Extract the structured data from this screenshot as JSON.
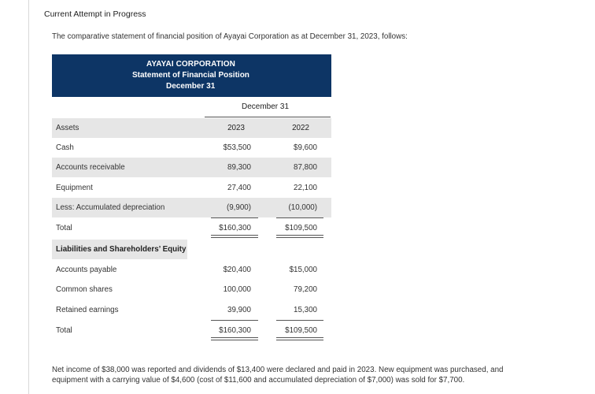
{
  "attempt_label": "Current Attempt in Progress",
  "intro": "The comparative statement of financial position of Ayayai Corporation as at December 31, 2023, follows:",
  "statement": {
    "company": "AYAYAI CORPORATION",
    "name": "Statement of Financial Position",
    "date": "December 31"
  },
  "table": {
    "group_header": "December 31",
    "assets_label": "Assets",
    "col_2023": "2023",
    "col_2022": "2022",
    "asset_rows": [
      {
        "label": "Cash",
        "y2023": "$53,500",
        "y2022": "$9,600"
      },
      {
        "label": "Accounts receivable",
        "y2023": "89,300",
        "y2022": "87,800"
      },
      {
        "label": "Equipment",
        "y2023": "27,400",
        "y2022": "22,100"
      },
      {
        "label": "Less: Accumulated depreciation",
        "y2023": "(9,900)",
        "y2022": "(10,000)"
      }
    ],
    "assets_total": {
      "label": "Total",
      "y2023": "$160,300",
      "y2022": "$109,500"
    },
    "liab_label": "Liabilities and Shareholders’ Equity",
    "liab_rows": [
      {
        "label": "Accounts payable",
        "y2023": "$20,400",
        "y2022": "$15,000"
      },
      {
        "label": "Common shares",
        "y2023": "100,000",
        "y2022": "79,200"
      },
      {
        "label": "Retained earnings",
        "y2023": "39,900",
        "y2022": "15,300"
      }
    ],
    "liab_total": {
      "label": "Total",
      "y2023": "$160,300",
      "y2022": "$109,500"
    }
  },
  "note": "Net income of $38,000 was reported and dividends of $13,400 were declared and paid in 2023. New equipment was purchased, and equipment with a carrying value of $4,600 (cost of $11,600 and accumulated depreciation of $7,000) was sold for $7,700."
}
